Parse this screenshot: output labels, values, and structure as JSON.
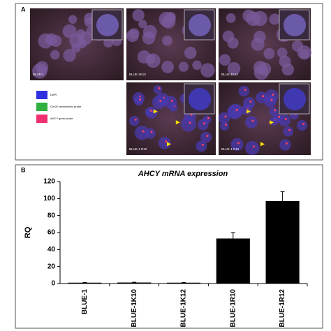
{
  "panel_a": {
    "label": "A",
    "images": [
      "BLUE-1",
      "BLUE-1K10",
      "BLUE-1K12",
      "BLUE-1 R10",
      "BLUE-1 R12"
    ],
    "legend": [
      "DAPI",
      "Chr20 centromeric probe",
      "AHCY gene probe"
    ]
  },
  "chart_data": {
    "type": "bar",
    "panel_label": "B",
    "title": "AHCY mRNA expression",
    "y_label": "RQ",
    "categories": [
      "BLUE-1",
      "BLUE-1K10",
      "BLUE-1K12",
      "BLUE-1R10",
      "BLUE-1R12"
    ],
    "values": [
      1,
      1.2,
      1,
      53,
      97
    ],
    "errors": [
      0.3,
      0.3,
      0.3,
      7,
      11
    ],
    "color": "#000000",
    "ylim": [
      0,
      120
    ],
    "yticks": [
      0,
      20,
      40,
      60,
      80,
      100,
      120
    ],
    "grid": false
  }
}
